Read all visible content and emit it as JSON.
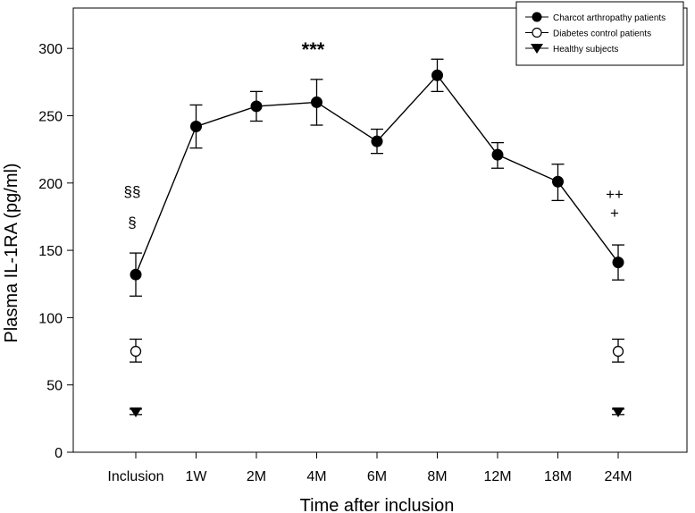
{
  "chart_data": {
    "type": "line",
    "title": "",
    "xlabel": "Time after inclusion",
    "ylabel": "Plasma IL-1RA (pg/ml)",
    "ylim": [
      0,
      330
    ],
    "yticks": [
      0,
      50,
      100,
      150,
      200,
      250,
      300
    ],
    "categories": [
      "Inclusion",
      "1W",
      "2M",
      "4M",
      "6M",
      "8M",
      "12M",
      "18M",
      "24M"
    ],
    "series": [
      {
        "name": "Charcot arthropathy patients",
        "marker": "filled-circle",
        "connected": true,
        "values": [
          132,
          242,
          257,
          260,
          231,
          280,
          221,
          201,
          141
        ],
        "err_upper": [
          148,
          258,
          268,
          277,
          240,
          292,
          230,
          214,
          154
        ],
        "err_lower": [
          116,
          226,
          246,
          243,
          222,
          268,
          211,
          187,
          128
        ]
      },
      {
        "name": "Diabetes control patients",
        "marker": "open-circle",
        "connected": false,
        "points": [
          {
            "category": "Inclusion",
            "value": 75,
            "err_upper": 84,
            "err_lower": 67
          },
          {
            "category": "24M",
            "value": 75,
            "err_upper": 84,
            "err_lower": 67
          }
        ]
      },
      {
        "name": "Healthy subjects",
        "marker": "filled-triangle-down",
        "connected": false,
        "points": [
          {
            "category": "Inclusion",
            "value": 30,
            "err_upper": 32,
            "err_lower": 28
          },
          {
            "category": "24M",
            "value": 30,
            "err_upper": 32,
            "err_lower": 28
          }
        ]
      }
    ],
    "annotations": [
      {
        "text": "***",
        "category": "4M",
        "value": 294
      },
      {
        "text": "§§",
        "category": "Inclusion",
        "value": 190
      },
      {
        "text": "§",
        "category": "Inclusion",
        "value": 167
      },
      {
        "text": "++",
        "category": "24M",
        "value": 188
      },
      {
        "text": "+",
        "category": "24M",
        "value": 174
      }
    ],
    "legend": {
      "position": "top-right",
      "entries": [
        "Charcot arthropathy patients",
        "Diabetes control patients",
        "Healthy subjects"
      ]
    }
  }
}
